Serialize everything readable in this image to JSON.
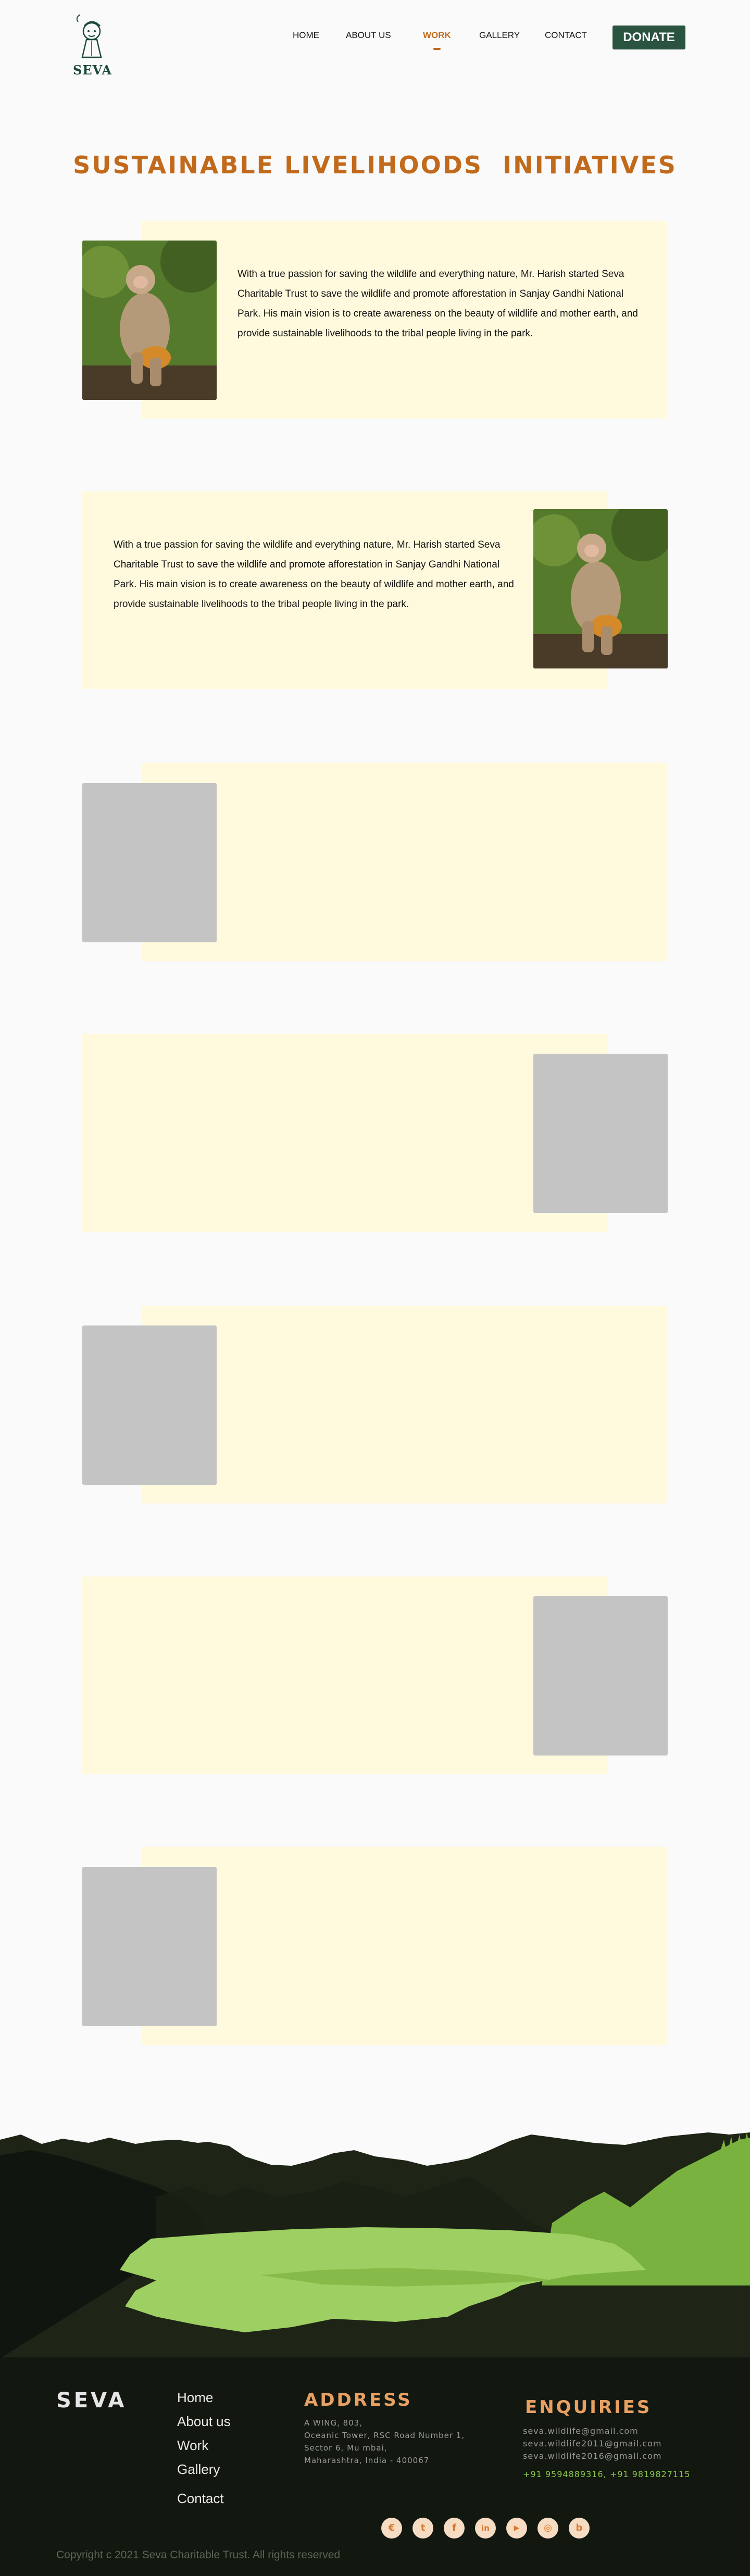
{
  "brand": {
    "logo_text": "SEVA"
  },
  "nav": {
    "items": [
      {
        "label": "HOME"
      },
      {
        "label": "ABOUT US"
      },
      {
        "label": "WORK"
      },
      {
        "label": "GALLERY"
      },
      {
        "label": "CONTACT"
      }
    ],
    "active": "WORK",
    "donate_label": "DONATE"
  },
  "page_title": "SUSTAINABLE LIVELIHOODS  INITIATIVES",
  "sections": [
    {
      "text": "With a true passion for saving the wildlife and everything nature, Mr. Harish started Seva Charitable Trust to save the wildlife and promote afforestation in Sanjay Gandhi National Park. His main vision is to create awareness on the beauty of wildlife and mother earth, and provide sustainable livelihoods to the tribal people living in the park.",
      "image": "monkey"
    },
    {
      "text": "With a true passion for saving the wildlife and everything nature, Mr. Harish started Seva Charitable Trust to save the wildlife and promote afforestation in Sanjay Gandhi National Park. His main vision is to create awareness on the beauty of wildlife and mother earth, and provide sustainable livelihoods to the tribal people living in the park.",
      "image": "monkey"
    },
    {
      "text": "",
      "image": "placeholder"
    },
    {
      "text": "",
      "image": "placeholder"
    },
    {
      "text": "",
      "image": "placeholder"
    },
    {
      "text": "",
      "image": "placeholder"
    },
    {
      "text": "",
      "image": "placeholder"
    }
  ],
  "footer": {
    "brand": "SEVA",
    "links": [
      "Home",
      "About us",
      "Work",
      "Gallery",
      "Contact"
    ],
    "address_heading": "ADDRESS",
    "address_lines": [
      "A WING, 803,",
      "Oceanic Tower, RSC Road Number 1,",
      "Sector 6, Mu mbai,",
      "Maharashtra, India - 400067"
    ],
    "enquiries_heading": "ENQUIRIES",
    "emails": [
      "seva.wildlife@gmail.com",
      "seva.wildlife2011@gmail.com",
      "seva.wildlife2016@gmail.com"
    ],
    "phones": "+91 9594889316, +91 9819827115",
    "social": [
      {
        "icon": "custom-brand-icon",
        "glyph": "€"
      },
      {
        "icon": "twitter-icon",
        "glyph": "t"
      },
      {
        "icon": "facebook-icon",
        "glyph": "f"
      },
      {
        "icon": "linkedin-icon",
        "glyph": "in"
      },
      {
        "icon": "youtube-icon",
        "glyph": "▶"
      },
      {
        "icon": "instagram-icon",
        "glyph": "◎"
      },
      {
        "icon": "blog-icon",
        "glyph": "b"
      }
    ],
    "copyright": "Copyright  c 2021 Seva Charitable Trust. All rights reserved"
  },
  "colors": {
    "accent": "#c26a1c",
    "donate_bg": "#2a5440",
    "panel_bg": "#fff9dd",
    "placeholder": "#c4c4c4",
    "footer_bg": "#121810",
    "footer_heading": "#e8a063",
    "phone": "#8bc84a"
  }
}
